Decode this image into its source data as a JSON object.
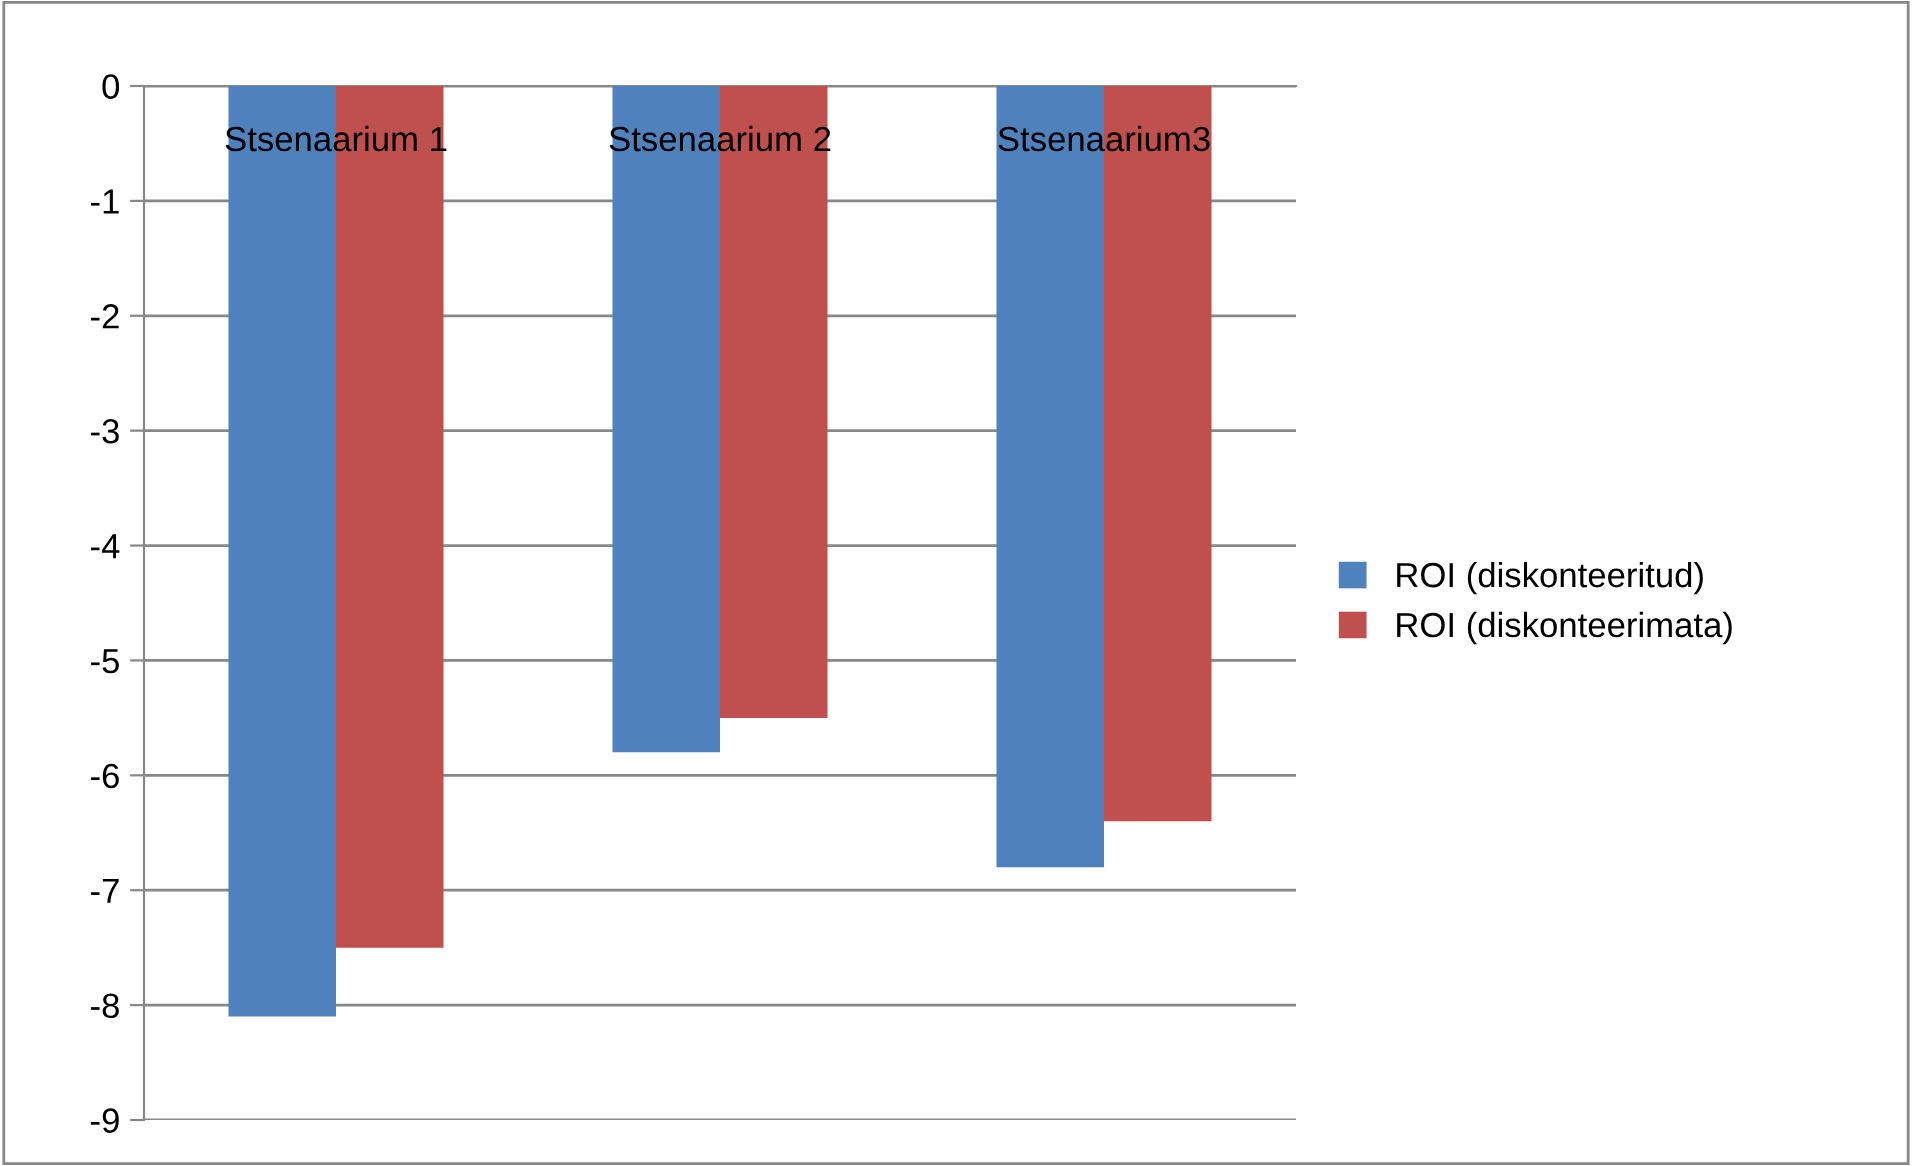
{
  "chart_data": {
    "type": "bar",
    "categories": [
      "Stsenaarium 1",
      "Stsenaarium 2",
      "Stsenaarium3"
    ],
    "series": [
      {
        "name": "ROI (diskonteeritud)",
        "color": "#4f81bd",
        "values": [
          -8.1,
          -5.8,
          -6.8
        ]
      },
      {
        "name": "ROI (diskonteerimata)",
        "color": "#c0504d",
        "values": [
          -7.5,
          -5.5,
          -6.4
        ]
      }
    ],
    "ylim": [
      -9,
      0
    ],
    "yticks": [
      -9,
      -8,
      -7,
      -6,
      -5,
      -4,
      -3,
      -2,
      -1,
      0
    ],
    "grid": "y",
    "legend": "right"
  }
}
